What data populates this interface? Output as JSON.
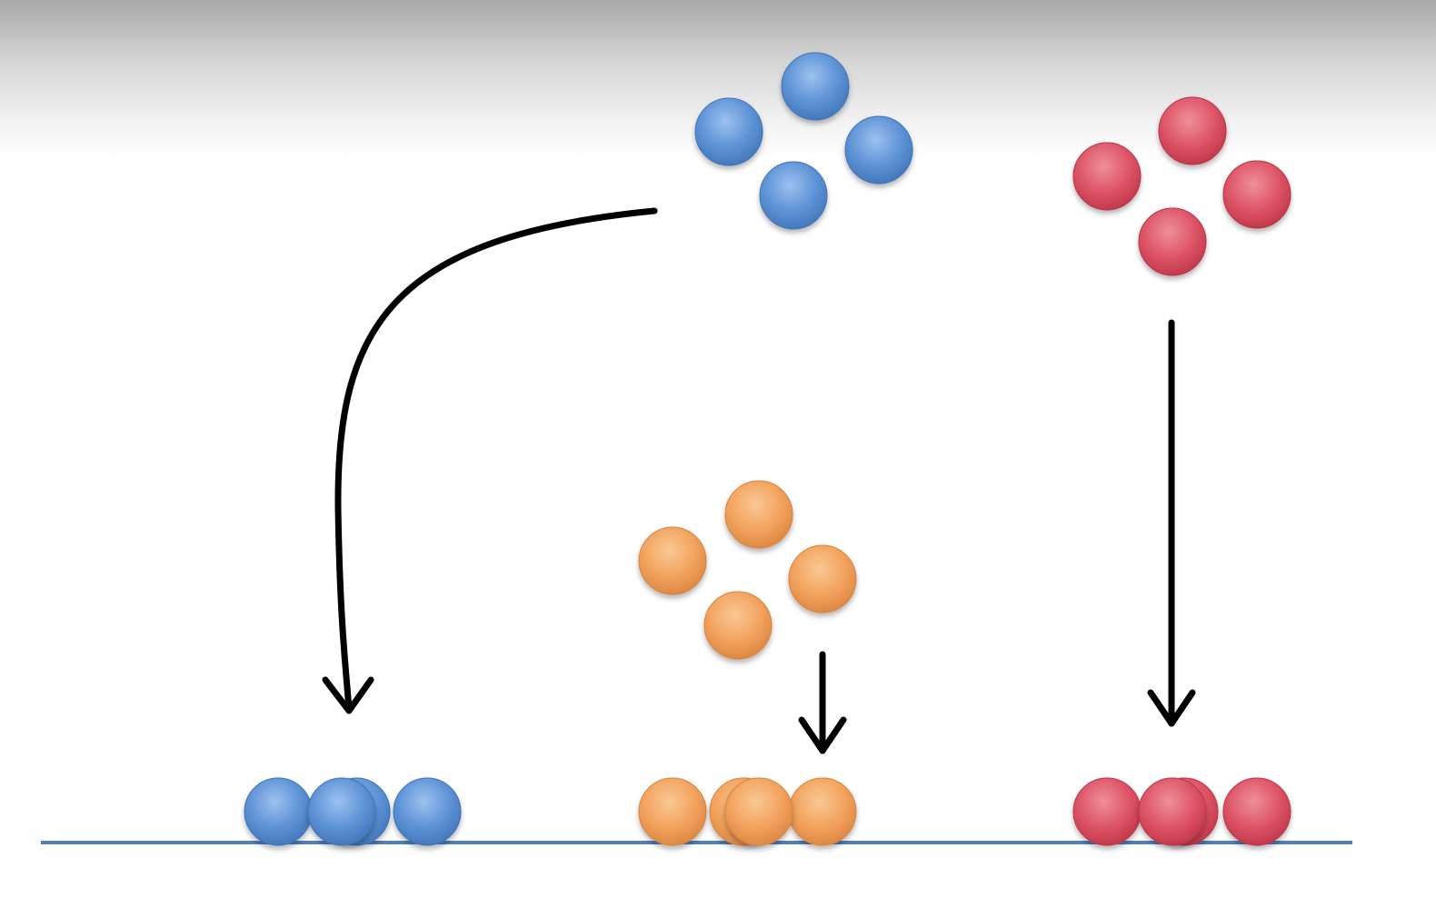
{
  "colors": {
    "blue": "#5e93d6",
    "blue_light": "#9cc2f0",
    "blue_dark": "#3f74b8",
    "orange": "#f3a35e",
    "orange_light": "#f9c894",
    "orange_dark": "#d9843f",
    "red": "#dd5566",
    "red_light": "#ef8f9b",
    "red_dark": "#bd3446",
    "arrow": "#000000",
    "baseline": "#4f7fbd"
  },
  "groups": [
    {
      "name": "blue-particle-cluster",
      "color": "blue",
      "state": "free",
      "count": 4
    },
    {
      "name": "red-particle-cluster",
      "color": "red",
      "state": "free",
      "count": 4
    },
    {
      "name": "orange-particle-cluster",
      "color": "orange",
      "state": "free",
      "count": 4
    },
    {
      "name": "blue-adsorbed-particles",
      "color": "blue",
      "state": "on-surface",
      "count": 4
    },
    {
      "name": "orange-adsorbed-particles",
      "color": "orange",
      "state": "on-surface",
      "count": 4
    },
    {
      "name": "red-adsorbed-particles",
      "color": "red",
      "state": "on-surface",
      "count": 4
    }
  ],
  "arrows": [
    {
      "name": "blue-long-curved-arrow",
      "shape": "curved"
    },
    {
      "name": "orange-short-arrow",
      "shape": "straight"
    },
    {
      "name": "red-long-arrow",
      "shape": "straight"
    }
  ]
}
